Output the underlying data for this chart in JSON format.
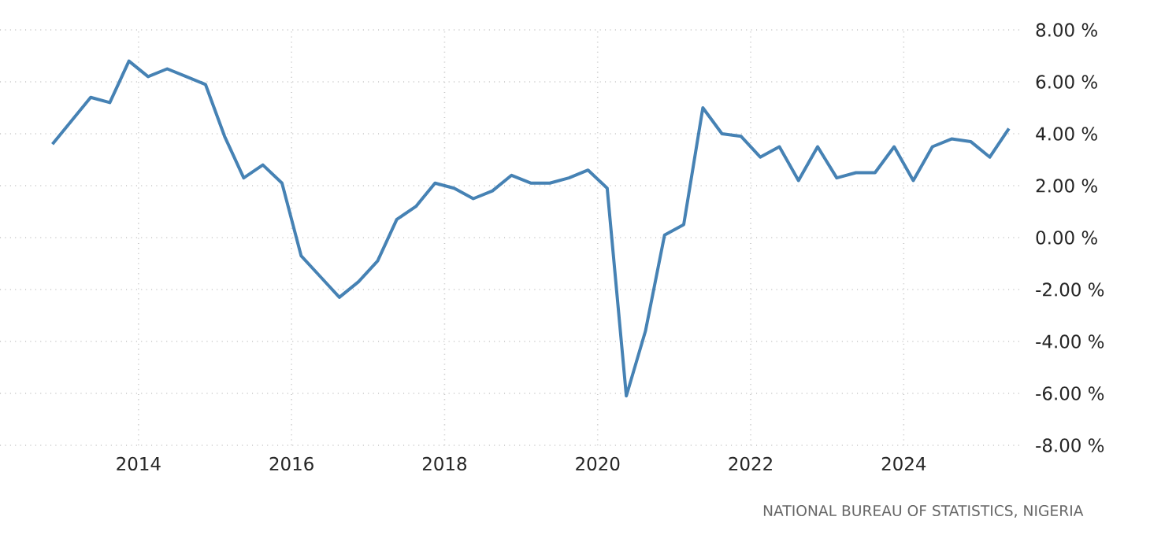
{
  "chart_data": {
    "type": "line",
    "x": [
      2012.875,
      2013.125,
      2013.375,
      2013.625,
      2013.875,
      2014.125,
      2014.375,
      2014.625,
      2014.875,
      2015.125,
      2015.375,
      2015.625,
      2015.875,
      2016.125,
      2016.375,
      2016.625,
      2016.875,
      2017.125,
      2017.375,
      2017.625,
      2017.875,
      2018.125,
      2018.375,
      2018.625,
      2018.875,
      2019.125,
      2019.375,
      2019.625,
      2019.875,
      2020.125,
      2020.375,
      2020.625,
      2020.875,
      2021.125,
      2021.375,
      2021.625,
      2021.875,
      2022.125,
      2022.375,
      2022.625,
      2022.875,
      2023.125,
      2023.375,
      2023.625,
      2023.875,
      2024.125,
      2024.375,
      2024.625,
      2024.875,
      2025.125,
      2025.375
    ],
    "series": [
      {
        "color": "#4682b4",
        "values": [
          3.6,
          4.5,
          5.4,
          5.2,
          6.8,
          6.2,
          6.5,
          6.2,
          5.9,
          3.9,
          2.3,
          2.8,
          2.1,
          -0.7,
          -1.5,
          -2.3,
          -1.7,
          -0.9,
          0.7,
          1.2,
          2.1,
          1.9,
          1.5,
          1.8,
          2.4,
          2.1,
          2.1,
          2.3,
          2.6,
          1.9,
          -6.1,
          -3.6,
          0.1,
          0.5,
          5.0,
          4.0,
          3.9,
          3.1,
          3.5,
          2.2,
          3.5,
          2.3,
          2.5,
          2.5,
          3.5,
          2.2,
          3.5,
          3.8,
          3.7,
          3.1,
          4.2
        ]
      }
    ],
    "xlim": [
      2012.19,
      2025.51
    ],
    "xticks": [
      2014,
      2016,
      2018,
      2020,
      2022,
      2024
    ],
    "ylim": [
      -8,
      8
    ],
    "yticks": [
      {
        "value": -8,
        "label": "-8.00 %"
      },
      {
        "value": -6,
        "label": "-6.00 %"
      },
      {
        "value": -4,
        "label": "-4.00 %"
      },
      {
        "value": -2,
        "label": "-2.00 %"
      },
      {
        "value": 0,
        "label": "0.00 %"
      },
      {
        "value": 2,
        "label": "2.00 %"
      },
      {
        "value": 4,
        "label": "4.00 %"
      },
      {
        "value": 6,
        "label": "6.00 %"
      },
      {
        "value": 8,
        "label": "8.00 %"
      }
    ],
    "grid": true,
    "annotations": [
      "NATIONAL BUREAU OF STATISTICS, NIGERIA"
    ]
  }
}
